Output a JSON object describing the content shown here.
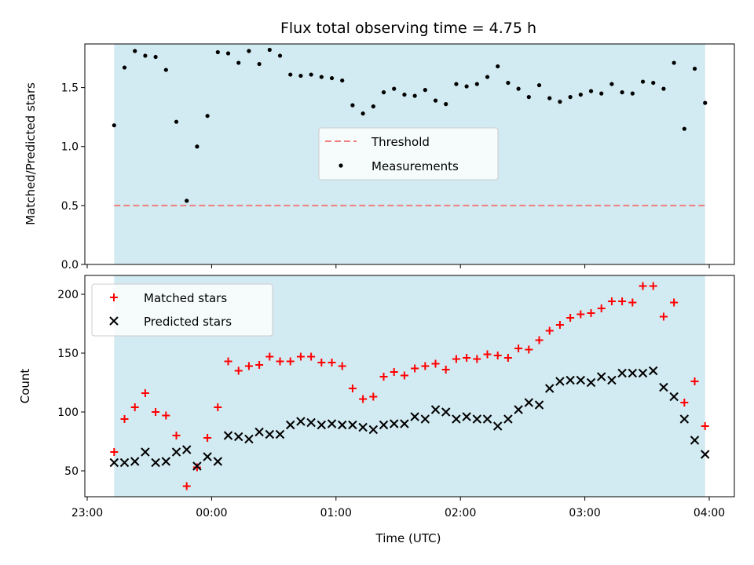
{
  "chart_data": [
    {
      "type": "scatter",
      "title": "Flux total observing time = 4.75 h",
      "xlabel": "",
      "ylabel": "Matched/Predicted stars",
      "ylim": [
        0,
        1.87
      ],
      "yticks": [
        "0.0",
        "0.5",
        "1.0",
        "1.5"
      ],
      "x_range": [
        "23:00",
        "04:00"
      ],
      "shaded_interval": [
        "23:13",
        "03:58"
      ],
      "shade_color": "#add8e6",
      "legend_position": "center",
      "threshold": {
        "name": "Threshold",
        "value": 0.5,
        "style": "dashed",
        "color": "#f08080"
      },
      "series": [
        {
          "name": "Measurements",
          "color": "#000000",
          "marker": "dot",
          "points": [
            [
              "23:13",
              1.18
            ],
            [
              "23:18",
              1.67
            ],
            [
              "23:23",
              1.81
            ],
            [
              "23:28",
              1.77
            ],
            [
              "23:33",
              1.76
            ],
            [
              "23:38",
              1.65
            ],
            [
              "23:43",
              1.21
            ],
            [
              "23:48",
              0.54
            ],
            [
              "23:53",
              1.0
            ],
            [
              "23:58",
              1.26
            ],
            [
              "00:03",
              1.8
            ],
            [
              "00:08",
              1.79
            ],
            [
              "00:13",
              1.71
            ],
            [
              "00:18",
              1.81
            ],
            [
              "00:23",
              1.7
            ],
            [
              "00:28",
              1.82
            ],
            [
              "00:33",
              1.77
            ],
            [
              "00:38",
              1.61
            ],
            [
              "00:43",
              1.6
            ],
            [
              "00:48",
              1.61
            ],
            [
              "00:53",
              1.59
            ],
            [
              "00:58",
              1.58
            ],
            [
              "01:03",
              1.56
            ],
            [
              "01:08",
              1.35
            ],
            [
              "01:13",
              1.28
            ],
            [
              "01:18",
              1.34
            ],
            [
              "01:23",
              1.46
            ],
            [
              "01:28",
              1.49
            ],
            [
              "01:33",
              1.44
            ],
            [
              "01:38",
              1.43
            ],
            [
              "01:43",
              1.48
            ],
            [
              "01:48",
              1.39
            ],
            [
              "01:53",
              1.36
            ],
            [
              "01:58",
              1.53
            ],
            [
              "02:03",
              1.51
            ],
            [
              "02:08",
              1.53
            ],
            [
              "02:13",
              1.59
            ],
            [
              "02:18",
              1.68
            ],
            [
              "02:23",
              1.54
            ],
            [
              "02:28",
              1.49
            ],
            [
              "02:33",
              1.42
            ],
            [
              "02:38",
              1.52
            ],
            [
              "02:43",
              1.41
            ],
            [
              "02:48",
              1.38
            ],
            [
              "02:53",
              1.42
            ],
            [
              "02:58",
              1.44
            ],
            [
              "03:03",
              1.47
            ],
            [
              "03:08",
              1.45
            ],
            [
              "03:13",
              1.53
            ],
            [
              "03:18",
              1.46
            ],
            [
              "03:23",
              1.45
            ],
            [
              "03:28",
              1.55
            ],
            [
              "03:33",
              1.54
            ],
            [
              "03:38",
              1.49
            ],
            [
              "03:43",
              1.71
            ],
            [
              "03:48",
              1.15
            ],
            [
              "03:53",
              1.66
            ],
            [
              "03:58",
              1.37
            ]
          ]
        }
      ]
    },
    {
      "type": "scatter",
      "title": "",
      "xlabel": "Time (UTC)",
      "ylabel": "Count",
      "ylim": [
        28,
        216
      ],
      "yticks": [
        "50",
        "100",
        "150",
        "200"
      ],
      "x_range": [
        "23:00",
        "04:00"
      ],
      "xticks": [
        "23:00",
        "00:00",
        "01:00",
        "02:00",
        "03:00",
        "04:00"
      ],
      "shaded_interval": [
        "23:13",
        "03:58"
      ],
      "shade_color": "#add8e6",
      "legend_position": "top-left",
      "series": [
        {
          "name": "Matched stars",
          "color": "#ff0000",
          "marker": "plus",
          "points": [
            [
              "23:13",
              66
            ],
            [
              "23:18",
              94
            ],
            [
              "23:23",
              104
            ],
            [
              "23:28",
              116
            ],
            [
              "23:33",
              100
            ],
            [
              "23:38",
              97
            ],
            [
              "23:43",
              80
            ],
            [
              "23:48",
              37
            ],
            [
              "23:53",
              53
            ],
            [
              "23:58",
              78
            ],
            [
              "00:03",
              104
            ],
            [
              "00:08",
              143
            ],
            [
              "00:13",
              135
            ],
            [
              "00:18",
              139
            ],
            [
              "00:23",
              140
            ],
            [
              "00:28",
              147
            ],
            [
              "00:33",
              143
            ],
            [
              "00:38",
              143
            ],
            [
              "00:43",
              147
            ],
            [
              "00:48",
              147
            ],
            [
              "00:53",
              142
            ],
            [
              "00:58",
              142
            ],
            [
              "01:03",
              139
            ],
            [
              "01:08",
              120
            ],
            [
              "01:13",
              111
            ],
            [
              "01:18",
              113
            ],
            [
              "01:23",
              130
            ],
            [
              "01:28",
              134
            ],
            [
              "01:33",
              131
            ],
            [
              "01:38",
              137
            ],
            [
              "01:43",
              139
            ],
            [
              "01:48",
              141
            ],
            [
              "01:53",
              136
            ],
            [
              "01:58",
              145
            ],
            [
              "02:03",
              146
            ],
            [
              "02:08",
              145
            ],
            [
              "02:13",
              149
            ],
            [
              "02:18",
              148
            ],
            [
              "02:23",
              146
            ],
            [
              "02:28",
              154
            ],
            [
              "02:33",
              153
            ],
            [
              "02:38",
              161
            ],
            [
              "02:43",
              169
            ],
            [
              "02:48",
              174
            ],
            [
              "02:53",
              180
            ],
            [
              "02:58",
              183
            ],
            [
              "03:03",
              184
            ],
            [
              "03:08",
              188
            ],
            [
              "03:13",
              194
            ],
            [
              "03:18",
              194
            ],
            [
              "03:23",
              193
            ],
            [
              "03:28",
              207
            ],
            [
              "03:33",
              207
            ],
            [
              "03:38",
              181
            ],
            [
              "03:43",
              193
            ],
            [
              "03:48",
              108
            ],
            [
              "03:53",
              126
            ],
            [
              "03:58",
              88
            ]
          ]
        },
        {
          "name": "Predicted stars",
          "color": "#000000",
          "marker": "x",
          "points": [
            [
              "23:13",
              57
            ],
            [
              "23:18",
              57
            ],
            [
              "23:23",
              58
            ],
            [
              "23:28",
              66
            ],
            [
              "23:33",
              57
            ],
            [
              "23:38",
              58
            ],
            [
              "23:43",
              66
            ],
            [
              "23:48",
              68
            ],
            [
              "23:53",
              54
            ],
            [
              "23:58",
              62
            ],
            [
              "00:03",
              58
            ],
            [
              "00:08",
              80
            ],
            [
              "00:13",
              79
            ],
            [
              "00:18",
              77
            ],
            [
              "00:23",
              83
            ],
            [
              "00:28",
              81
            ],
            [
              "00:33",
              81
            ],
            [
              "00:38",
              89
            ],
            [
              "00:43",
              92
            ],
            [
              "00:48",
              91
            ],
            [
              "00:53",
              89
            ],
            [
              "00:58",
              90
            ],
            [
              "01:03",
              89
            ],
            [
              "01:08",
              89
            ],
            [
              "01:13",
              87
            ],
            [
              "01:18",
              85
            ],
            [
              "01:23",
              89
            ],
            [
              "01:28",
              90
            ],
            [
              "01:33",
              90
            ],
            [
              "01:38",
              96
            ],
            [
              "01:43",
              94
            ],
            [
              "01:48",
              102
            ],
            [
              "01:53",
              100
            ],
            [
              "01:58",
              94
            ],
            [
              "02:03",
              96
            ],
            [
              "02:08",
              94
            ],
            [
              "02:13",
              94
            ],
            [
              "02:18",
              88
            ],
            [
              "02:23",
              94
            ],
            [
              "02:28",
              102
            ],
            [
              "02:33",
              108
            ],
            [
              "02:38",
              106
            ],
            [
              "02:43",
              120
            ],
            [
              "02:48",
              126
            ],
            [
              "02:53",
              127
            ],
            [
              "02:58",
              127
            ],
            [
              "03:03",
              125
            ],
            [
              "03:08",
              130
            ],
            [
              "03:13",
              127
            ],
            [
              "03:18",
              133
            ],
            [
              "03:23",
              133
            ],
            [
              "03:28",
              133
            ],
            [
              "03:33",
              135
            ],
            [
              "03:38",
              121
            ],
            [
              "03:43",
              113
            ],
            [
              "03:48",
              94
            ],
            [
              "03:53",
              76
            ],
            [
              "03:58",
              64
            ]
          ]
        }
      ]
    }
  ]
}
